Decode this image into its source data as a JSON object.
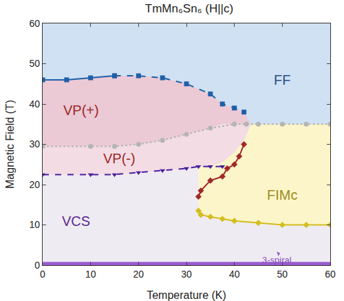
{
  "chart_data": {
    "type": "scatter",
    "title": "TmMn₆Sn₆ (H||c)",
    "x_label": "Temperature (K)",
    "y_label": "Magnetic Field (T)",
    "xlim": [
      0,
      60
    ],
    "ylim": [
      0,
      60
    ],
    "xticks": [
      0,
      10,
      20,
      30,
      40,
      50,
      60
    ],
    "yticks": [
      0,
      10,
      20,
      30,
      40,
      50,
      60
    ],
    "grid": false,
    "regions": [
      {
        "color": "#efebf2",
        "x": [
          0,
          60,
          60,
          0
        ],
        "y": [
          0,
          0,
          60,
          60
        ]
      },
      {
        "color": "#cfe1f2",
        "x": [
          0,
          0,
          5,
          10,
          15,
          20,
          25,
          30,
          35,
          37.5,
          40,
          42,
          43.5,
          60,
          60
        ],
        "y": [
          60,
          46,
          46,
          46.5,
          47,
          47,
          46.5,
          45,
          42.5,
          40,
          39,
          38,
          35,
          35,
          60
        ]
      },
      {
        "color": "#ebc9d5",
        "x": [
          0,
          5,
          10,
          15,
          20,
          25,
          30,
          35,
          37.5,
          40,
          42,
          43.5,
          42,
          40,
          37.5,
          35,
          30,
          25,
          20,
          15,
          10,
          0
        ],
        "y": [
          46,
          46,
          46.5,
          47,
          47,
          46.5,
          45,
          42.5,
          40,
          39,
          38,
          35,
          35,
          35,
          35,
          34,
          32.5,
          31,
          30,
          29.5,
          29.5,
          29.5
        ]
      },
      {
        "color": "#f3dce4",
        "x": [
          0,
          10,
          15,
          20,
          25,
          30,
          35,
          37.5,
          40,
          42,
          43.5,
          42,
          40,
          37.5,
          35,
          32.5,
          30,
          25,
          20,
          15,
          10,
          0
        ],
        "y": [
          29.5,
          29.5,
          29.5,
          30,
          31,
          32.5,
          34,
          35,
          35,
          35,
          35,
          31,
          28,
          25.5,
          24.5,
          24.5,
          24,
          23.5,
          23,
          22.5,
          22.5,
          22.5
        ]
      },
      {
        "color": "#fcf5c9",
        "x": [
          32.5,
          32.5,
          35,
          37.5,
          40,
          42,
          43.5,
          60,
          60,
          55,
          50,
          45,
          40,
          37.5,
          35,
          32.5
        ],
        "y": [
          13.5,
          24.5,
          24.5,
          25.5,
          28,
          31,
          35,
          35,
          10,
          10,
          10,
          10.5,
          11,
          11.5,
          12,
          13.5
        ]
      },
      {
        "color": "#9a5cd0",
        "x": [
          0,
          60,
          60,
          0
        ],
        "y": [
          0,
          0,
          0.8,
          0.8
        ]
      }
    ],
    "series": [
      {
        "color": "#1f5fa8",
        "marker": "square",
        "line_style": "solid",
        "x": [
          0,
          5,
          10,
          15
        ],
        "values": [
          46,
          46,
          46.5,
          47
        ]
      },
      {
        "color": "#1f5fa8",
        "marker": "square",
        "line_style": "dashed",
        "x": [
          15,
          20,
          25,
          30,
          35,
          37.5,
          40,
          42
        ],
        "values": [
          47,
          47,
          46.5,
          45,
          42.5,
          40,
          39,
          38
        ]
      },
      {
        "color": "#b4b4b4",
        "marker": "circle",
        "line_style": "dotted",
        "x": [
          0,
          10,
          15,
          20,
          25,
          30,
          35,
          40,
          42.5,
          45,
          50,
          55,
          60
        ],
        "values": [
          29.5,
          29.5,
          29.5,
          30,
          31,
          32.5,
          34,
          35,
          35,
          35,
          35,
          35,
          35
        ]
      },
      {
        "color": "#4a1f9e",
        "marker": "triangle-down",
        "line_style": "dashed",
        "x": [
          0,
          10,
          15,
          20,
          25,
          30,
          32.5,
          35,
          37.5
        ],
        "values": [
          22.5,
          22.5,
          22.5,
          23,
          23.5,
          24,
          24.5,
          24.5,
          24.5
        ]
      },
      {
        "color": "#a02828",
        "marker": "diamond",
        "line_style": "solid",
        "x": [
          32.5,
          33,
          35,
          37.5,
          38.5,
          40,
          41,
          42
        ],
        "values": [
          17,
          18.5,
          21,
          22,
          24,
          25,
          27,
          30
        ]
      },
      {
        "color": "#d2be1e",
        "marker": "diamond",
        "line_style": "solid",
        "x": [
          32.5,
          33,
          35,
          37.5,
          40,
          45,
          50,
          55,
          60
        ],
        "values": [
          13.5,
          12.5,
          12,
          11.5,
          11,
          10.5,
          10,
          10,
          10
        ]
      }
    ],
    "annotations": [
      {
        "text": "FF",
        "x": 50,
        "y": 46,
        "color": "#2a4f86"
      },
      {
        "text": "VP(+)",
        "x": 8,
        "y": 38.5,
        "color": "#9e2a2a"
      },
      {
        "text": "VP(-)",
        "x": 16,
        "y": 26.5,
        "color": "#9e2a2a"
      },
      {
        "text": "VCS",
        "x": 7,
        "y": 11,
        "color": "#5a2a90"
      },
      {
        "text": "FIMc",
        "x": 50,
        "y": 17.5,
        "color": "#9c8c1c"
      },
      {
        "text": "3-spiral",
        "x": 49.5,
        "y": 3,
        "color": "#8a4fc0"
      }
    ]
  }
}
